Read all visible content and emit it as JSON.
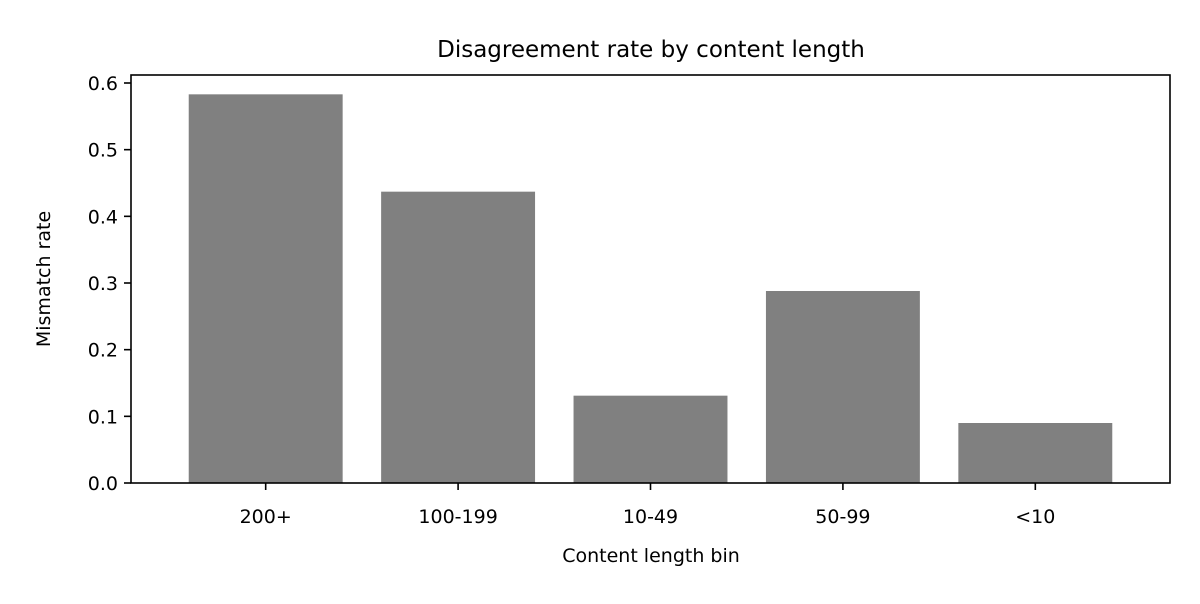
{
  "chart_data": {
    "type": "bar",
    "title": "Disagreement rate by content length",
    "xlabel": "Content length bin",
    "ylabel": "Mismatch rate",
    "categories": [
      "200+",
      "100-199",
      "10-49",
      "50-99",
      "<10"
    ],
    "values": [
      0.583,
      0.437,
      0.131,
      0.288,
      0.09
    ],
    "ylim": [
      0,
      0.612
    ],
    "yticks": [
      0.0,
      0.1,
      0.2,
      0.3,
      0.4,
      0.5,
      0.6
    ],
    "ytick_labels": [
      "0.0",
      "0.1",
      "0.2",
      "0.3",
      "0.4",
      "0.5",
      "0.6"
    ],
    "grid": false,
    "bar_color": "#808080"
  }
}
